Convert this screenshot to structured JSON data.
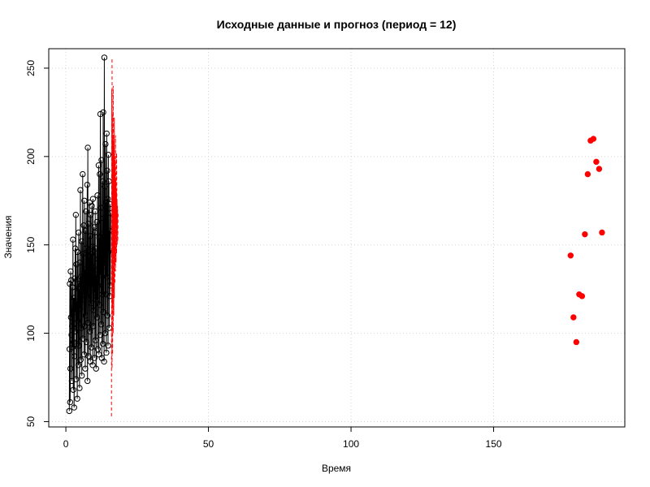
{
  "chart_data": {
    "type": "scatter",
    "title": "Исходные данные и прогноз (период = 12)",
    "xlabel": "Время",
    "ylabel": "Значения",
    "xlim": [
      -6,
      196
    ],
    "ylim": [
      47,
      261
    ],
    "x_ticks": [
      0,
      50,
      100,
      150
    ],
    "y_ticks": [
      50,
      100,
      150,
      200,
      250
    ],
    "x_tick_labels": [
      "0",
      "50",
      "100",
      "150"
    ],
    "y_tick_labels": [
      "50",
      "100",
      "150",
      "200",
      "250"
    ],
    "grid": true,
    "legend": "none",
    "series": [
      {
        "style": "line-points",
        "color": "#000000",
        "points": [
          [
            1.2,
            56
          ],
          [
            1.3,
            91
          ],
          [
            1.4,
            128
          ],
          [
            1.5,
            61
          ],
          [
            1.6,
            80
          ],
          [
            1.7,
            135
          ],
          [
            1.8,
            109
          ],
          [
            1.9,
            130
          ],
          [
            2.0,
            99
          ],
          [
            2.1,
            73
          ],
          [
            2.2,
            104
          ],
          [
            2.3,
            126
          ],
          [
            2.4,
            92
          ],
          [
            2.5,
            153
          ],
          [
            2.6,
            68
          ],
          [
            2.7,
            95
          ],
          [
            2.8,
            120
          ],
          [
            2.9,
            58
          ],
          [
            3.0,
            87
          ],
          [
            3.1,
            131
          ],
          [
            3.2,
            112
          ],
          [
            3.3,
            148
          ],
          [
            3.4,
            101
          ],
          [
            3.5,
            167
          ],
          [
            3.6,
            74
          ],
          [
            3.7,
            139
          ],
          [
            3.8,
            94
          ],
          [
            3.9,
            118
          ],
          [
            4.0,
            63
          ],
          [
            4.1,
            146
          ],
          [
            4.2,
            107
          ],
          [
            4.3,
            128
          ],
          [
            4.4,
            82
          ],
          [
            4.5,
            157
          ],
          [
            4.6,
            93
          ],
          [
            4.7,
            125
          ],
          [
            4.8,
            69
          ],
          [
            4.9,
            140
          ],
          [
            5.0,
            114
          ],
          [
            5.1,
            181
          ],
          [
            5.2,
            85
          ],
          [
            5.3,
            132
          ],
          [
            5.4,
            103
          ],
          [
            5.5,
            152
          ],
          [
            5.6,
            76
          ],
          [
            5.7,
            128
          ],
          [
            5.8,
            119
          ],
          [
            5.9,
            190
          ],
          [
            6.0,
            97
          ],
          [
            6.1,
            145
          ],
          [
            6.2,
            122
          ],
          [
            6.3,
            161
          ],
          [
            6.4,
            88
          ],
          [
            6.5,
            175
          ],
          [
            6.6,
            104
          ],
          [
            6.7,
            136
          ],
          [
            6.8,
            80
          ],
          [
            6.9,
            158
          ],
          [
            7.0,
            110
          ],
          [
            7.1,
            169
          ],
          [
            7.2,
            95
          ],
          [
            7.3,
            148
          ],
          [
            7.4,
            121
          ],
          [
            7.5,
            184
          ],
          [
            7.6,
            73
          ],
          [
            7.7,
            205
          ],
          [
            7.8,
            106
          ],
          [
            7.9,
            162
          ],
          [
            8.0,
            87
          ],
          [
            8.1,
            143
          ],
          [
            8.2,
            129
          ],
          [
            8.3,
            174
          ],
          [
            8.4,
            101
          ],
          [
            8.5,
            155
          ],
          [
            8.6,
            84
          ],
          [
            8.7,
            167
          ],
          [
            8.8,
            117
          ],
          [
            8.9,
            145
          ],
          [
            9.0,
            92
          ],
          [
            9.1,
            172
          ],
          [
            9.2,
            126
          ],
          [
            9.3,
            149
          ],
          [
            9.4,
            82
          ],
          [
            9.5,
            176
          ],
          [
            9.6,
            104
          ],
          [
            9.7,
            137
          ],
          [
            9.8,
            113
          ],
          [
            9.9,
            160
          ],
          [
            10.0,
            86
          ],
          [
            10.1,
            157
          ],
          [
            10.2,
            123
          ],
          [
            10.3,
            169
          ],
          [
            10.4,
            96
          ],
          [
            10.5,
            148
          ],
          [
            10.6,
            80
          ],
          [
            10.7,
            133
          ],
          [
            10.8,
            119
          ],
          [
            10.9,
            163
          ],
          [
            11.0,
            109
          ],
          [
            11.1,
            178
          ],
          [
            11.2,
            91
          ],
          [
            11.3,
            142
          ],
          [
            11.4,
            127
          ],
          [
            11.5,
            195
          ],
          [
            11.6,
            88
          ],
          [
            11.7,
            154
          ],
          [
            11.8,
            116
          ],
          [
            11.9,
            190
          ],
          [
            12.0,
            99
          ],
          [
            12.1,
            224
          ],
          [
            12.2,
            133
          ],
          [
            12.3,
            171
          ],
          [
            12.4,
            105
          ],
          [
            12.5,
            198
          ],
          [
            12.6,
            86
          ],
          [
            12.7,
            156
          ],
          [
            12.8,
            122
          ],
          [
            12.9,
            186
          ],
          [
            13.0,
            94
          ],
          [
            13.1,
            225
          ],
          [
            13.2,
            112
          ],
          [
            13.3,
            165
          ],
          [
            13.4,
            84
          ],
          [
            13.5,
            256
          ],
          [
            13.6,
            138
          ],
          [
            13.7,
            183
          ],
          [
            13.8,
            100
          ],
          [
            13.9,
            207
          ],
          [
            14.0,
            122
          ],
          [
            14.1,
            174
          ],
          [
            14.2,
            89
          ],
          [
            14.3,
            213
          ],
          [
            14.4,
            132
          ],
          [
            14.5,
            192
          ],
          [
            14.6,
            110
          ],
          [
            14.7,
            176
          ],
          [
            14.8,
            93
          ],
          [
            14.9,
            201
          ],
          [
            15.0,
            146
          ],
          [
            15.1,
            186
          ],
          [
            15.2,
            103
          ],
          [
            15.3,
            158
          ],
          [
            15.4,
            121
          ],
          [
            15.5,
            173
          ],
          [
            15.6,
            127
          ],
          [
            15.7,
            168
          ]
        ]
      },
      {
        "style": "dashed-line",
        "color": "#ff0000",
        "points": [
          [
            16.0,
            53
          ],
          [
            16.1,
            238
          ],
          [
            16.2,
            80
          ],
          [
            16.3,
            224
          ],
          [
            16.4,
            88
          ],
          [
            16.5,
            210
          ],
          [
            16.6,
            100
          ],
          [
            16.7,
            212
          ],
          [
            16.8,
            110
          ],
          [
            16.9,
            205
          ],
          [
            17.0,
            120
          ],
          [
            17.1,
            200
          ],
          [
            17.2,
            128
          ],
          [
            17.3,
            198
          ],
          [
            17.4,
            135
          ],
          [
            17.5,
            188
          ],
          [
            17.6,
            140
          ],
          [
            17.7,
            180
          ],
          [
            17.8,
            145
          ],
          [
            17.9,
            176
          ],
          [
            18.0,
            150
          ],
          [
            18.1,
            172
          ],
          [
            18.2,
            152
          ],
          [
            18.3,
            168
          ]
        ]
      },
      {
        "style": "dashed-line",
        "color": "#ff0000",
        "points": [
          [
            16.2,
            255
          ],
          [
            16.4,
            115
          ],
          [
            16.6,
            240
          ],
          [
            16.8,
            128
          ],
          [
            17.0,
            222
          ],
          [
            17.2,
            140
          ],
          [
            17.4,
            212
          ],
          [
            17.6,
            150
          ],
          [
            17.8,
            202
          ],
          [
            18.0,
            158
          ]
        ]
      },
      {
        "style": "solid-line",
        "color": "#ff0000",
        "points": [
          [
            16.5,
            145
          ],
          [
            16.6,
            209
          ],
          [
            16.7,
            150
          ],
          [
            16.8,
            205
          ],
          [
            16.9,
            155
          ],
          [
            17.0,
            198
          ],
          [
            17.1,
            158
          ],
          [
            17.2,
            192
          ],
          [
            17.3,
            160
          ],
          [
            17.4,
            186
          ],
          [
            17.5,
            162
          ],
          [
            17.6,
            180
          ],
          [
            17.7,
            164
          ],
          [
            17.8,
            176
          ],
          [
            17.9,
            165
          ],
          [
            18.0,
            170
          ]
        ]
      },
      {
        "style": "points",
        "color": "#ff0000",
        "points": [
          [
            177,
            144
          ],
          [
            178,
            109
          ],
          [
            179,
            95
          ],
          [
            180,
            122
          ],
          [
            181,
            121
          ],
          [
            182,
            156
          ],
          [
            183,
            190
          ],
          [
            184,
            209
          ],
          [
            185,
            210
          ],
          [
            186,
            197
          ],
          [
            187,
            193
          ],
          [
            188,
            157
          ]
        ]
      }
    ]
  }
}
